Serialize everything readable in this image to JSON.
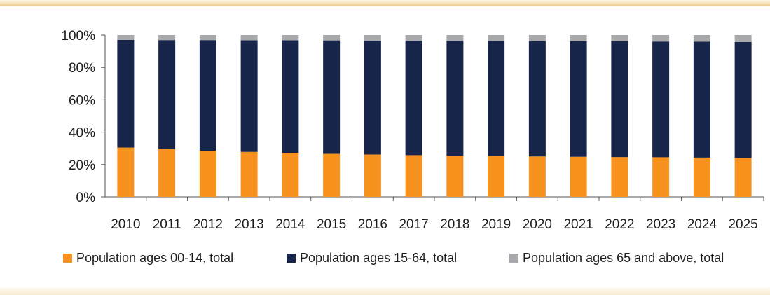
{
  "colors": {
    "series_0_14": "#f7921e",
    "series_15_64": "#18254a",
    "series_65_plus": "#a7a9ac",
    "axis": "#555555"
  },
  "chart_data": {
    "type": "bar",
    "stacked": true,
    "title": "",
    "xlabel": "",
    "ylabel": "",
    "ylim": [
      0,
      100
    ],
    "y_ticks": [
      "0%",
      "20%",
      "40%",
      "60%",
      "80%",
      "100%"
    ],
    "categories": [
      "2010",
      "2011",
      "2012",
      "2013",
      "2014",
      "2015",
      "2016",
      "2017",
      "2018",
      "2019",
      "2020",
      "2021",
      "2022",
      "2023",
      "2024",
      "2025"
    ],
    "series": [
      {
        "name": "Population ages 00-14, total",
        "color_key": "series_0_14",
        "values": [
          30.5,
          29.5,
          28.5,
          27.8,
          27.2,
          26.6,
          26.2,
          25.8,
          25.5,
          25.3,
          25.0,
          24.8,
          24.6,
          24.5,
          24.3,
          24.1
        ]
      },
      {
        "name": "Population ages 15-64, total",
        "color_key": "series_15_64",
        "values": [
          66.5,
          67.4,
          68.4,
          69.0,
          69.6,
          70.1,
          70.4,
          70.7,
          71.0,
          71.1,
          71.3,
          71.4,
          71.5,
          71.5,
          71.6,
          71.6
        ]
      },
      {
        "name": "Population ages 65 and above, total",
        "color_key": "series_65_plus",
        "values": [
          3.0,
          3.1,
          3.1,
          3.2,
          3.2,
          3.3,
          3.4,
          3.5,
          3.5,
          3.6,
          3.7,
          3.8,
          3.9,
          4.0,
          4.1,
          4.3
        ]
      }
    ],
    "grid": false,
    "legend_position": "bottom"
  }
}
